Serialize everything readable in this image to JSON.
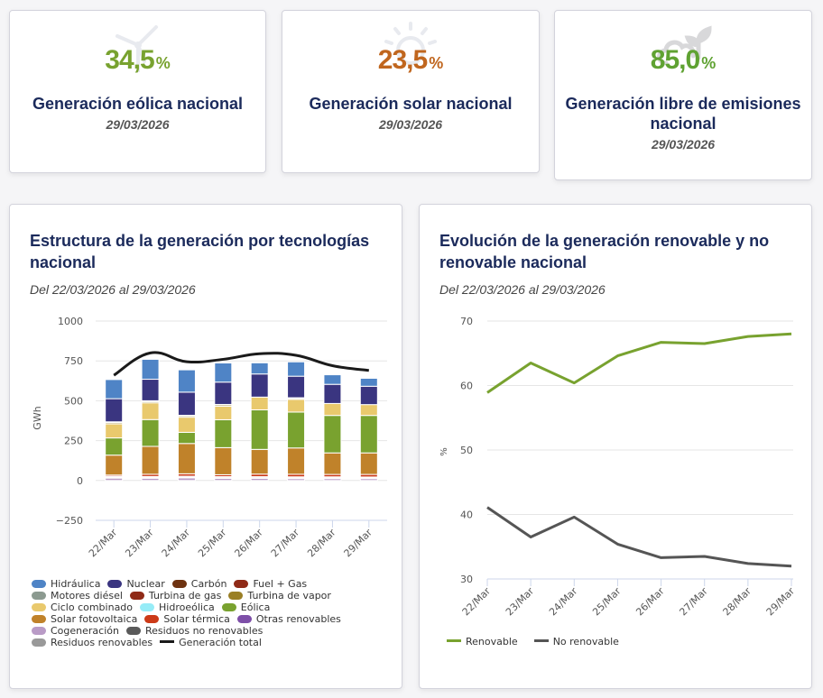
{
  "kpis": [
    {
      "value": "34,5",
      "unit": "%",
      "title": "Generación eólica nacional",
      "date": "29/03/2026",
      "color": "#78a22f",
      "icon": "wind-turbine-icon"
    },
    {
      "value": "23,5",
      "unit": "%",
      "title": "Generación solar nacional",
      "date": "29/03/2026",
      "color": "#c0661e",
      "icon": "sun-icon"
    },
    {
      "value": "85,0",
      "unit": "%",
      "title": "Generación libre de emisiones nacional",
      "date": "29/03/2026",
      "color": "#5fa232",
      "icon": "cloud-leaf-icon"
    }
  ],
  "cards": {
    "structure": {
      "title": "Estructura de la generación por tecnologías nacional",
      "subtitle": "Del 22/03/2026 al 29/03/2026"
    },
    "evolution": {
      "title": "Evolución de la generación renovable y no renovable nacional",
      "subtitle": "Del 22/03/2026 al 29/03/2026"
    }
  },
  "chart_data": [
    {
      "type": "bar",
      "stacked": true,
      "title": "Estructura de la generación por tecnologías nacional",
      "xlabel": "",
      "ylabel": "GWh",
      "ylim": [
        -250,
        1000
      ],
      "yticks": [
        -250,
        0,
        250,
        500,
        750,
        1000
      ],
      "ytick_labels": [
        "−250",
        "0",
        "250",
        "500",
        "750",
        "1000"
      ],
      "grid": true,
      "legend_position": "bottom",
      "categories": [
        "22/Mar",
        "23/Mar",
        "24/Mar",
        "25/Mar",
        "26/Mar",
        "27/Mar",
        "28/Mar",
        "29/Mar"
      ],
      "series": [
        {
          "name": "Cogeneración",
          "color": "#b99bc6",
          "values": [
            15,
            14,
            16,
            13,
            13,
            12,
            12,
            12
          ]
        },
        {
          "name": "Residuos no renovables",
          "color": "#5a5a5a",
          "values": [
            3,
            3,
            3,
            3,
            3,
            3,
            3,
            3
          ]
        },
        {
          "name": "Residuos renovables",
          "color": "#999999",
          "values": [
            2,
            2,
            2,
            2,
            2,
            2,
            2,
            2
          ]
        },
        {
          "name": "Otras renovables",
          "color": "#7e4fa8",
          "values": [
            6,
            6,
            6,
            6,
            6,
            6,
            6,
            5
          ]
        },
        {
          "name": "Solar térmica",
          "color": "#cc3a18",
          "values": [
            8,
            14,
            15,
            12,
            16,
            16,
            15,
            16
          ]
        },
        {
          "name": "Solar fotovoltaica",
          "color": "#c0822a",
          "values": [
            125,
            175,
            190,
            170,
            155,
            165,
            135,
            135
          ]
        },
        {
          "name": "Eólica",
          "color": "#79a22f",
          "values": [
            108,
            168,
            70,
            175,
            248,
            225,
            235,
            235
          ]
        },
        {
          "name": "Hidroeólica",
          "color": "#96ecf7",
          "values": [
            0,
            0,
            0,
            0,
            0,
            0,
            0,
            0
          ]
        },
        {
          "name": "Ciclo combinado",
          "color": "#e9c96d",
          "values": [
            88,
            105,
            95,
            85,
            80,
            80,
            75,
            68
          ]
        },
        {
          "name": "Turbina de vapor",
          "color": "#9a7f25",
          "values": [
            8,
            8,
            8,
            8,
            0,
            6,
            0,
            0
          ]
        },
        {
          "name": "Turbina de gas",
          "color": "#8f2a17",
          "values": [
            0,
            0,
            0,
            0,
            0,
            0,
            0,
            0
          ]
        },
        {
          "name": "Motores diésel",
          "color": "#8c9a90",
          "values": [
            5,
            5,
            4,
            3,
            0,
            4,
            0,
            0
          ]
        },
        {
          "name": "Fuel + Gas",
          "color": "#8f2a17",
          "values": [
            0,
            0,
            0,
            0,
            0,
            0,
            0,
            0
          ]
        },
        {
          "name": "Carbón",
          "color": "#6e3210",
          "values": [
            0,
            0,
            0,
            0,
            0,
            0,
            0,
            0
          ]
        },
        {
          "name": "Nuclear",
          "color": "#3a3580",
          "values": [
            145,
            135,
            145,
            140,
            145,
            135,
            120,
            115
          ]
        },
        {
          "name": "Hidráulica",
          "color": "#4f84c6",
          "values": [
            120,
            125,
            140,
            120,
            70,
            90,
            60,
            50
          ]
        }
      ],
      "line_series": {
        "name": "Generación total",
        "color": "#1a1a1a",
        "values": [
          660,
          800,
          745,
          760,
          795,
          785,
          720,
          690
        ]
      }
    },
    {
      "type": "line",
      "title": "Evolución de la generación renovable y no renovable nacional",
      "xlabel": "",
      "ylabel": "%",
      "ylim": [
        30,
        70
      ],
      "yticks": [
        30,
        40,
        50,
        60,
        70
      ],
      "grid": true,
      "legend_position": "bottom-left",
      "categories": [
        "22/Mar",
        "23/Mar",
        "24/Mar",
        "25/Mar",
        "26/Mar",
        "27/Mar",
        "28/Mar",
        "29/Mar"
      ],
      "series": [
        {
          "name": "Renovable",
          "color": "#78a22f",
          "values": [
            58.9,
            63.5,
            60.4,
            64.6,
            66.7,
            66.5,
            67.6,
            68.0
          ]
        },
        {
          "name": "No renovable",
          "color": "#555555",
          "values": [
            41.1,
            36.5,
            39.6,
            35.4,
            33.3,
            33.5,
            32.4,
            32.0
          ]
        }
      ]
    }
  ],
  "legend_layout": [
    [
      "Hidráulica",
      "Nuclear",
      "Carbón",
      "Fuel + Gas"
    ],
    [
      "Motores diésel",
      "Turbina de gas",
      "Turbina de vapor"
    ],
    [
      "Ciclo combinado",
      "Hidroeólica",
      "Eólica"
    ],
    [
      "Solar fotovoltaica",
      "Solar térmica",
      "Otras renovables"
    ],
    [
      "Cogeneración",
      "Residuos no renovables"
    ],
    [
      "Residuos renovables",
      "Generación total"
    ]
  ]
}
